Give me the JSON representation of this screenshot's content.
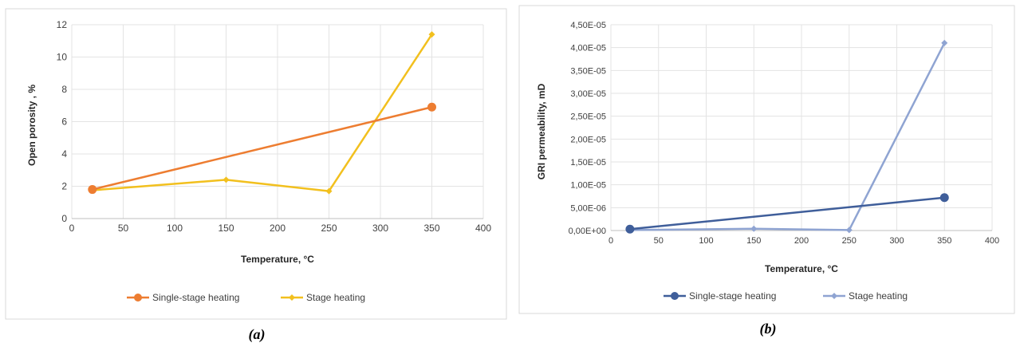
{
  "chart_data": [
    {
      "type": "line",
      "caption": "(a)",
      "xlabel": "Temperature, °C",
      "ylabel": "Open porosity , %",
      "xlim": [
        0,
        400
      ],
      "ylim": [
        0,
        12
      ],
      "xticks": [
        "0",
        "50",
        "100",
        "150",
        "200",
        "250",
        "300",
        "350",
        "400"
      ],
      "yticks": [
        "0",
        "2",
        "4",
        "6",
        "8",
        "10",
        "12"
      ],
      "grid": true,
      "legend_position": "bottom",
      "series": [
        {
          "name": "Single-stage heating",
          "color": "#ED7D31",
          "marker": "circle",
          "x": [
            20,
            350
          ],
          "y": [
            1.8,
            6.9
          ]
        },
        {
          "name": "Stage heating",
          "color": "#F2C01E",
          "marker": "diamond",
          "x": [
            20,
            150,
            250,
            350
          ],
          "y": [
            1.75,
            2.4,
            1.7,
            11.4
          ]
        }
      ]
    },
    {
      "type": "line",
      "caption": "(b)",
      "xlabel": "Temperature, °C",
      "ylabel": "GRI permeability,  mD",
      "xlim": [
        0,
        400
      ],
      "ylim": [
        0,
        4.5e-05
      ],
      "xticks": [
        "0",
        "50",
        "100",
        "150",
        "200",
        "250",
        "300",
        "350",
        "400"
      ],
      "yticks": [
        "0,00E+00",
        "5,00E-06",
        "1,00E-05",
        "1,50E-05",
        "2,00E-05",
        "2,50E-05",
        "3,00E-05",
        "3,50E-05",
        "4,00E-05",
        "4,50E-05"
      ],
      "grid": true,
      "legend_position": "bottom",
      "series": [
        {
          "name": "Single-stage heating",
          "color": "#3F5E9A",
          "marker": "circle",
          "x": [
            20,
            350
          ],
          "y": [
            3e-07,
            7.2e-06
          ]
        },
        {
          "name": "Stage heating",
          "color": "#8FA4D2",
          "marker": "diamond",
          "x": [
            20,
            150,
            250,
            350
          ],
          "y": [
            1e-07,
            4e-07,
            1e-07,
            4.1e-05
          ]
        }
      ]
    }
  ]
}
